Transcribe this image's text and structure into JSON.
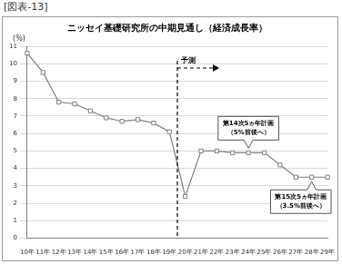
{
  "chart_data": {
    "type": "line",
    "header": "[図表-13]",
    "title": "ニッセイ基礎研究所の中期見通し（経済成長率）",
    "ylabel": "(%)",
    "categories": [
      "10年",
      "11年",
      "12年",
      "13年",
      "14年",
      "15年",
      "16年",
      "17年",
      "18年",
      "19年",
      "20年",
      "21年",
      "22年",
      "23年",
      "24年",
      "25年",
      "26年",
      "27年",
      "28年",
      "29年"
    ],
    "values": [
      10.6,
      9.5,
      7.8,
      7.7,
      7.3,
      6.9,
      6.7,
      6.8,
      6.6,
      6.1,
      2.4,
      5.0,
      5.0,
      4.9,
      4.9,
      4.9,
      4.2,
      3.5,
      3.5,
      3.5
    ],
    "color": "#808080",
    "marker": "square",
    "ylim": [
      0,
      11
    ],
    "yticks": [
      0,
      1,
      2,
      3,
      4,
      5,
      6,
      7,
      8,
      9,
      10,
      11
    ],
    "grid": true,
    "annotations": [
      {
        "text": "予測",
        "category": "20年"
      },
      {
        "lines": [
          "第14次5ヵ年計画",
          "（5%前後へ）"
        ],
        "category": "24年"
      },
      {
        "lines": [
          "第15次5ヵ年計画",
          "（3.5%前後へ）"
        ],
        "category": "28年"
      }
    ]
  }
}
